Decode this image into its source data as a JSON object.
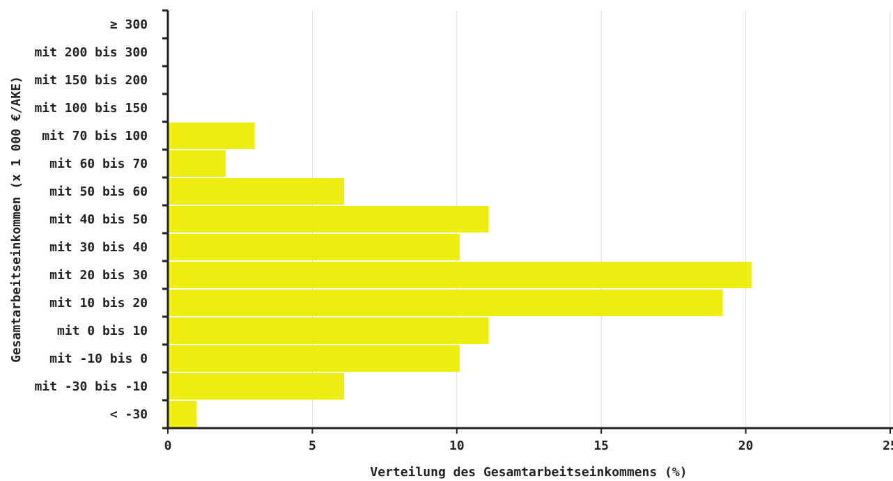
{
  "chart_data": {
    "type": "bar",
    "orientation": "horizontal",
    "xlabel": "Verteilung des Gesamtarbeitseinkommens (%)",
    "ylabel": "Gesamtarbeitseinkommen (x 1 000 €/AKE)",
    "xlim": [
      0,
      25
    ],
    "xticks": [
      "0",
      "5",
      "10",
      "15",
      "20",
      "25"
    ],
    "grid": "vertical",
    "categories": [
      "≥ 300",
      "mit 200 bis 300",
      "mit 150 bis 200",
      "mit 100 bis 150",
      "mit 70 bis 100",
      "mit 60 bis 70",
      "mit 50 bis 60",
      "mit 40 bis 50",
      "mit 30 bis 40",
      "mit 20 bis 30",
      "mit 10 bis 20",
      "mit 0 bis 10",
      "mit -10 bis 0",
      "mit -30 bis -10",
      "< -30"
    ],
    "values": [
      0,
      0,
      0,
      0,
      3,
      2,
      6.1,
      11.1,
      10.1,
      20.2,
      19.2,
      11.1,
      10.1,
      6.1,
      1
    ],
    "bar_color": "#eeee11"
  }
}
